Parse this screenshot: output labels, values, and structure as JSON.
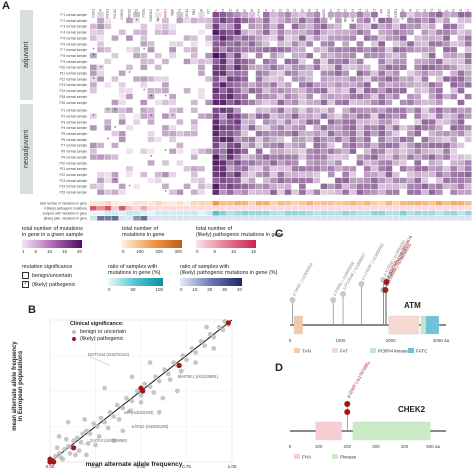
{
  "panel_a": {
    "letter": "A",
    "groups": [
      "adjuvant",
      "neoadjuvant"
    ],
    "row_labels_adjuvant": [
      "P 1 normal sample",
      "P 2 normal sample",
      "P 3 normal sample",
      "P 4 normal sample",
      "P 5 normal sample",
      "P 6 normal sample",
      "P 7 normal sample",
      "P 8 normal sample",
      "P 9 normal sample",
      "P10 normal sample",
      "P11 normal sample",
      "P12 normal sample",
      "P13 normal sample",
      "P14 normal sample",
      "P15 normal sample",
      "P16 normal sample"
    ],
    "row_labels_neoadjuvant": [
      "P1 normal sample",
      "P2 normal sample",
      "P3 normal sample",
      "P4 normal sample",
      "P5 normal sample",
      "P6 normal sample",
      "P7 normal sample",
      "P8 normal sample",
      "P9 normal sample",
      "P10 normal sample",
      "P11 normal sample",
      "P12 normal sample",
      "P13 normal sample",
      "P14 normal sample",
      "P15 normal sample"
    ],
    "summary_rows": [
      "total number of mutations in gene",
      "# (likely) pathogenic mutations",
      "samples with mutations in gene",
      "(likely) path. mutations in gene"
    ],
    "gene_labels": [
      "CDH1",
      "ATM",
      "BRCA1",
      "PALB2",
      "CHEK2",
      "BRCA2",
      "TP53",
      "PTEN",
      "RAD51C",
      "RAD51D",
      "BARD1",
      "NBN",
      "BRIP1",
      "STK11",
      "RB1",
      "CDKN2A",
      "KIT",
      "APC",
      "MLH1",
      "MSH2",
      "MSH6",
      "PMS2",
      "EPCAM",
      "MUTYH",
      "FANCA",
      "FANCC",
      "FANCD2",
      "FANCM",
      "XRCC2",
      "AXIN2",
      "BLM",
      "MRE11",
      "RAD50",
      "SMAD4",
      "NOTCH1",
      "NOTCH2",
      "NOTCH3",
      "LATS1",
      "LATS2",
      "MAP3K1",
      "AR",
      "GATA3",
      "ESR1",
      "ERBB2",
      "PIK3CA",
      "AKT1",
      "KRAS",
      "NF1",
      "CDK12",
      "RECQL",
      "SLX4",
      "POLE",
      "POLD1"
    ],
    "legend_total": {
      "title": "total number of mutations\nin gene in a given sample",
      "ticks": [
        "1",
        "5",
        "10",
        "15",
        "20"
      ]
    },
    "legend_gene": {
      "title": "total number of\nmutations in gene",
      "ticks": [
        "0",
        "100",
        "200",
        "300"
      ]
    },
    "legend_path": {
      "title": "total number of\n(likely) pathogenic mutations in gene",
      "ticks": [
        "0",
        "5",
        "10",
        "15"
      ]
    },
    "legend_sig": {
      "title": "mutation significance",
      "items": [
        "benign/uncertain",
        "(likely) pathogenic"
      ]
    },
    "legend_ratio1": {
      "title": "ratio of samples with\nmutations in gene (%)",
      "ticks": [
        "0",
        "50",
        "100"
      ]
    },
    "legend_ratio2": {
      "title": "ratio of samples with\n(likely) pathogenic mutations in gene (%)",
      "ticks": [
        "0",
        "10",
        "20",
        "30",
        "40"
      ]
    },
    "colors": {
      "heat_low": "#f3e6f2",
      "heat_high": "#4a0f5c",
      "orange": "#f29a4a",
      "teal": "#52c3cf",
      "navy": "#1c2b66",
      "pink": "#c9264e"
    }
  },
  "panel_b": {
    "letter": "B",
    "legend_title": "Clinical significance:",
    "legend_items": [
      "benign or uncertain",
      "(likely) pathogenic"
    ],
    "xlabel": "mean alternate allele frequency",
    "ylabel": "mean alternate allele frequency\nin European populations",
    "annotations": [
      "NOTCH4 (rs3075310)",
      "MAP3K1 (rs2229881)",
      "AR (rs3032383)",
      "LATS2 (rs2082106)",
      "GATA3 (rs3729859)"
    ],
    "chart_data": {
      "type": "scatter",
      "xlim": [
        0,
        1
      ],
      "ylim": [
        0,
        1
      ],
      "x_ticks": [
        "0.00",
        "0.25",
        "0.50",
        "0.75",
        "1.00"
      ],
      "series": [
        {
          "name": "benign or uncertain",
          "points": [
            [
              0.02,
              0.01
            ],
            [
              0.03,
              0.04
            ],
            [
              0.05,
              0.06
            ],
            [
              0.06,
              0.03
            ],
            [
              0.08,
              0.09
            ],
            [
              0.1,
              0.11
            ],
            [
              0.12,
              0.1
            ],
            [
              0.13,
              0.15
            ],
            [
              0.15,
              0.17
            ],
            [
              0.17,
              0.14
            ],
            [
              0.18,
              0.2
            ],
            [
              0.2,
              0.22
            ],
            [
              0.22,
              0.2
            ],
            [
              0.24,
              0.27
            ],
            [
              0.26,
              0.25
            ],
            [
              0.28,
              0.31
            ],
            [
              0.3,
              0.28
            ],
            [
              0.33,
              0.35
            ],
            [
              0.35,
              0.32
            ],
            [
              0.37,
              0.4
            ],
            [
              0.4,
              0.38
            ],
            [
              0.42,
              0.45
            ],
            [
              0.45,
              0.43
            ],
            [
              0.48,
              0.5
            ],
            [
              0.5,
              0.47
            ],
            [
              0.52,
              0.55
            ],
            [
              0.55,
              0.53
            ],
            [
              0.58,
              0.6
            ],
            [
              0.6,
              0.57
            ],
            [
              0.63,
              0.65
            ],
            [
              0.65,
              0.62
            ],
            [
              0.68,
              0.7
            ],
            [
              0.7,
              0.68
            ],
            [
              0.73,
              0.75
            ],
            [
              0.75,
              0.72
            ],
            [
              0.78,
              0.8
            ],
            [
              0.8,
              0.77
            ],
            [
              0.83,
              0.85
            ],
            [
              0.85,
              0.82
            ],
            [
              0.88,
              0.9
            ],
            [
              0.9,
              0.88
            ],
            [
              0.93,
              0.95
            ],
            [
              0.95,
              0.93
            ],
            [
              0.98,
              0.97
            ],
            [
              0.05,
              0.18
            ],
            [
              0.1,
              0.28
            ],
            [
              0.2,
              0.05
            ],
            [
              0.35,
              0.15
            ],
            [
              0.4,
              0.22
            ],
            [
              0.3,
              0.52
            ],
            [
              0.6,
              0.35
            ],
            [
              0.7,
              0.5
            ],
            [
              0.07,
              0.02
            ],
            [
              0.11,
              0.06
            ],
            [
              0.16,
              0.08
            ],
            [
              0.25,
              0.12
            ],
            [
              0.19,
              0.3
            ],
            [
              0.45,
              0.6
            ],
            [
              0.55,
              0.7
            ],
            [
              0.62,
              0.45
            ],
            [
              0.9,
              0.8
            ],
            [
              0.86,
              0.95
            ],
            [
              0.04,
              0.1
            ],
            [
              0.14,
              0.05
            ],
            [
              0.09,
              0.16
            ],
            [
              0.21,
              0.13
            ],
            [
              0.27,
              0.18
            ],
            [
              0.32,
              0.24
            ],
            [
              0.38,
              0.3
            ],
            [
              0.44,
              0.36
            ],
            [
              0.5,
              0.42
            ],
            [
              0.57,
              0.49
            ],
            [
              0.66,
              0.58
            ],
            [
              0.72,
              0.64
            ],
            [
              0.8,
              0.7
            ],
            [
              0.96,
              0.99
            ]
          ]
        },
        {
          "name": "(likely) pathogenic",
          "points": [
            [
              0.0,
              0.0
            ],
            [
              0.01,
              0.01
            ],
            [
              0.02,
              0.0
            ],
            [
              0.0,
              0.02
            ],
            [
              0.13,
              0.1
            ],
            [
              0.5,
              0.52
            ],
            [
              0.51,
              0.5
            ],
            [
              0.71,
              0.68
            ],
            [
              0.98,
              0.98
            ]
          ]
        }
      ]
    }
  },
  "panel_c": {
    "letter": "C",
    "gene": "ATM",
    "ticks": [
      "0",
      "1000",
      "2000",
      "3000 aa"
    ],
    "legend": [
      "TAN",
      "FAT",
      "PI3/PI4 kinase",
      "FATC"
    ],
    "legend_colors": [
      "#f4c9a8",
      "#f7d8d2",
      "#c5e8c8",
      "#6fc3d8"
    ],
    "variants": [
      {
        "label": "p.S49C | rs1800054",
        "pos": 49,
        "path": false
      },
      {
        "label": "p.F858L | rs1800056",
        "pos": 858,
        "path": false
      },
      {
        "label": "p.P1054R | rs1800057",
        "pos": 1054,
        "path": false
      },
      {
        "label": "p.D1853N | rs1801516",
        "pos": 1853,
        "path": false
      },
      {
        "label": "p.L1420F | rs1800058",
        "pos": 1420,
        "path": false
      },
      {
        "label": "p.V1856I | rs1800059",
        "pos": 1856,
        "path": false
      },
      {
        "label": "p.W1855fs | rs786204055",
        "pos": 1855,
        "path": true
      },
      {
        "label": "p.W1838fs | rs878854676",
        "pos": 1838,
        "path": true
      }
    ]
  },
  "panel_d": {
    "letter": "D",
    "gene": "CHEK2",
    "ticks": [
      "0",
      "100",
      "200",
      "300",
      "400",
      "500 aa"
    ],
    "legend": [
      "FHA",
      "Pkinase"
    ],
    "legend_colors": [
      "#f7cfd3",
      "#c9ecc5"
    ],
    "variants": [
      {
        "label": "p.I200T | rs17879961",
        "pos": 200,
        "path": true
      }
    ]
  }
}
